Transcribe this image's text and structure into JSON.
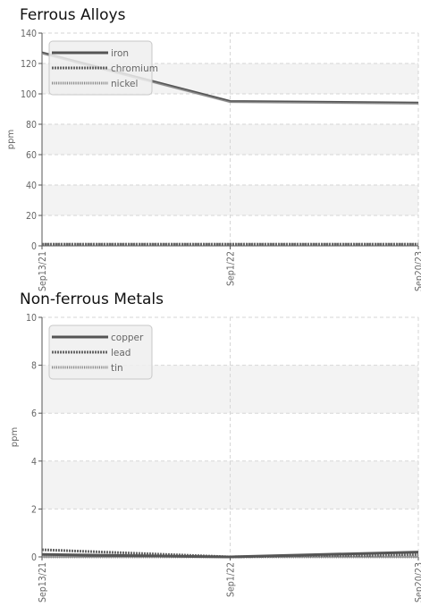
{
  "chart_data": [
    {
      "type": "line",
      "title": "Ferrous Alloys",
      "xlabel": "",
      "ylabel": "ppm",
      "categories": [
        "Sep13/21",
        "Sep1/22",
        "Sep20/23"
      ],
      "ylim": [
        0,
        140
      ],
      "yticks": [
        0,
        20,
        40,
        60,
        80,
        100,
        120,
        140
      ],
      "grid": true,
      "legend_position": "top-left",
      "series": [
        {
          "name": "iron",
          "values": [
            127,
            95,
            94
          ],
          "color": "#555555",
          "style": "solid"
        },
        {
          "name": "chromium",
          "values": [
            1,
            1,
            1
          ],
          "color": "#666666",
          "style": "dotted"
        },
        {
          "name": "nickel",
          "values": [
            1,
            1,
            1
          ],
          "color": "#888888",
          "style": "dashed"
        }
      ]
    },
    {
      "type": "line",
      "title": "Non-ferrous Metals",
      "xlabel": "",
      "ylabel": "ppm",
      "categories": [
        "Sep13/21",
        "Sep1/22",
        "Sep20/23"
      ],
      "ylim": [
        0,
        10
      ],
      "yticks": [
        0,
        2,
        4,
        6,
        8,
        10
      ],
      "grid": true,
      "legend_position": "top-left",
      "series": [
        {
          "name": "copper",
          "values": [
            0.1,
            0,
            0.2
          ],
          "color": "#555555",
          "style": "solid"
        },
        {
          "name": "lead",
          "values": [
            0.3,
            0,
            0.1
          ],
          "color": "#666666",
          "style": "dotted"
        },
        {
          "name": "tin",
          "values": [
            0,
            0,
            0
          ],
          "color": "#888888",
          "style": "dashed"
        }
      ]
    }
  ]
}
